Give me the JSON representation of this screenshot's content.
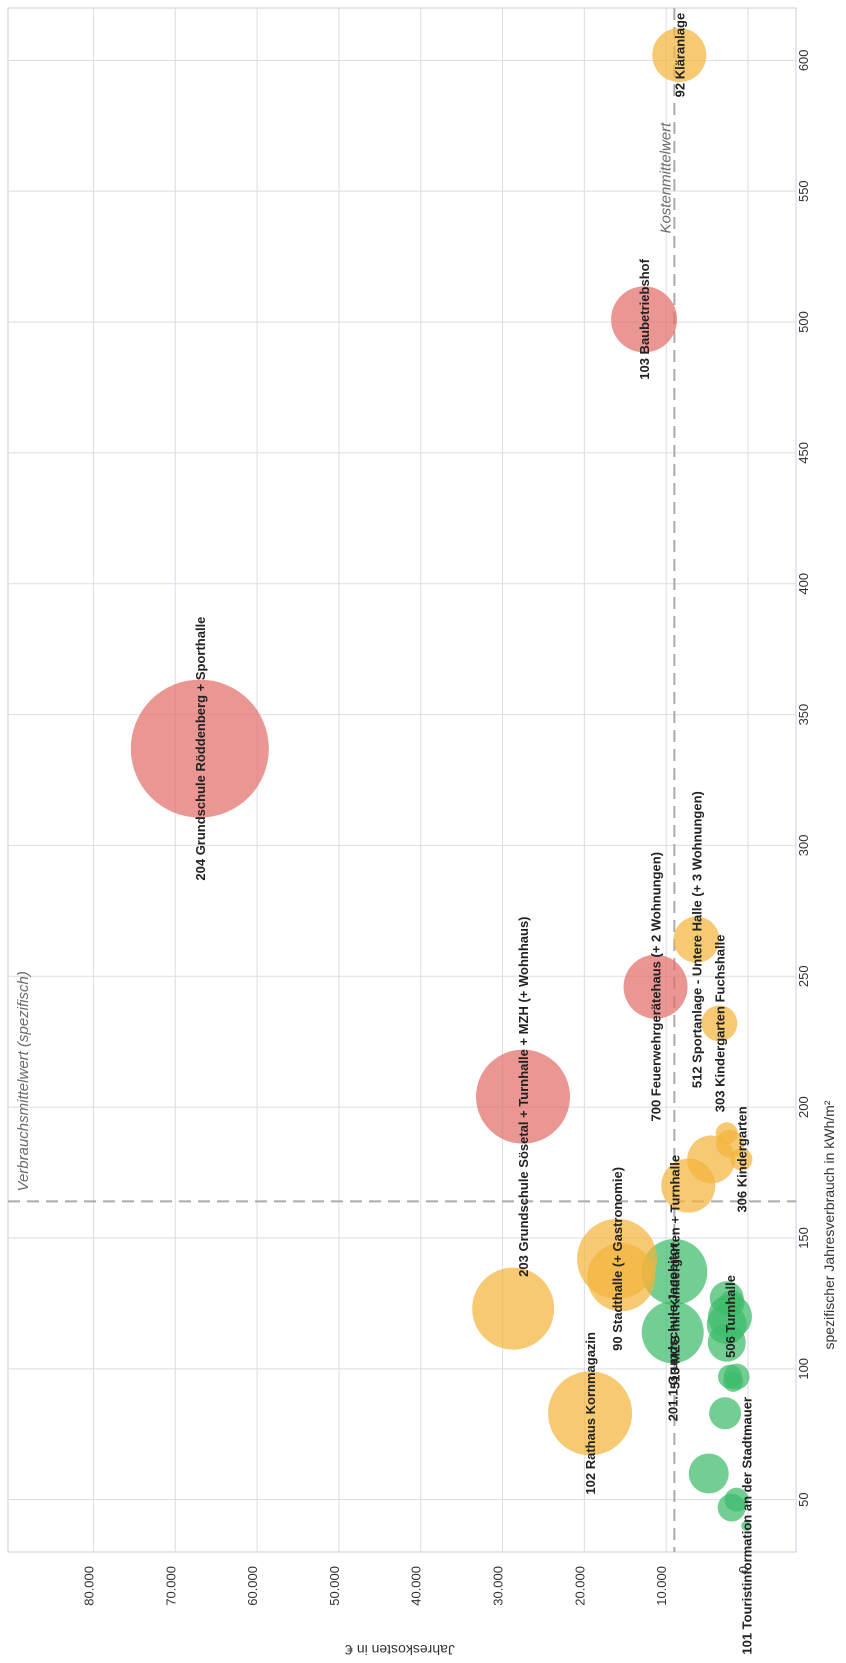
{
  "chart_data": {
    "type": "scatter",
    "xlabel": "spezifischer Jahresverbrauch in kWh/m²",
    "ylabel": "Jahreskosten in €",
    "xlim": [
      30,
      620
    ],
    "ylim": [
      0,
      88000
    ],
    "x_ticks": [
      50,
      100,
      150,
      200,
      250,
      300,
      350,
      400,
      450,
      500,
      550,
      600
    ],
    "y_ticks": [
      0,
      10000,
      20000,
      30000,
      40000,
      50000,
      60000,
      70000,
      80000
    ],
    "y_tick_labels": [
      "0",
      "10.000",
      "20.000",
      "30.000",
      "40.000",
      "50.000",
      "60.000",
      "70.000",
      "80.000"
    ],
    "grid": true,
    "colors": {
      "green": "#3dbb6b",
      "orange": "#f2b43c",
      "red": "#e26d6a",
      "reference": "#aaaaaa",
      "grid": "#dcdde6"
    },
    "reference_lines": [
      {
        "axis": "x",
        "value": 164,
        "label": "Verbrauchsmittelwert (spezifisch)"
      },
      {
        "axis": "y",
        "value": 9000,
        "label": "Kostenmittelwert"
      }
    ],
    "series": [
      {
        "color": "green",
        "points": [
          {
            "x": 40,
            "y": 200,
            "r": 5,
            "label": "101 Touristinformation an der Stadtmauer"
          },
          {
            "x": 47,
            "y": 2000,
            "r": 14
          },
          {
            "x": 50,
            "y": 1400,
            "r": 12
          },
          {
            "x": 60,
            "y": 4800,
            "r": 20
          },
          {
            "x": 83,
            "y": 2800,
            "r": 16
          },
          {
            "x": 95,
            "y": 1800,
            "r": 10
          },
          {
            "x": 97,
            "y": 1400,
            "r": 13
          },
          {
            "x": 97,
            "y": 2200,
            "r": 12
          },
          {
            "x": 110,
            "y": 2600,
            "r": 19
          },
          {
            "x": 114,
            "y": 9200,
            "r": 31,
            "label": "201.1 Grundschule Jacobitor"
          },
          {
            "x": 117,
            "y": 2600,
            "r": 20
          },
          {
            "x": 120,
            "y": 2200,
            "r": 22,
            "label": "506 Turnhalle"
          },
          {
            "x": 125,
            "y": 2000,
            "r": 13
          },
          {
            "x": 127,
            "y": 2600,
            "r": 17
          },
          {
            "x": 137,
            "y": 9000,
            "r": 33,
            "label": "513 MZG mit Kindergarten + Turnhalle"
          }
        ]
      },
      {
        "color": "orange",
        "points": [
          {
            "x": 83,
            "y": 19300,
            "r": 42,
            "label": "102 Rathaus Kornmagazin"
          },
          {
            "x": 123,
            "y": 28700,
            "r": 41
          },
          {
            "x": 135,
            "y": 15500,
            "r": 34
          },
          {
            "x": 142,
            "y": 16000,
            "r": 40,
            "label": "90 Stadthalle (+ Gastronomie)"
          },
          {
            "x": 170,
            "y": 7300,
            "r": 27
          },
          {
            "x": 180,
            "y": 4500,
            "r": 24
          },
          {
            "x": 180,
            "y": 800,
            "r": 11,
            "label": "306 Kindergarten"
          },
          {
            "x": 186,
            "y": 2200,
            "r": 14
          },
          {
            "x": 190,
            "y": 2600,
            "r": 11
          },
          {
            "x": 232,
            "y": 3500,
            "r": 18,
            "label": "303 Kindergarten Fuchshalle"
          },
          {
            "x": 264,
            "y": 6300,
            "r": 23,
            "label": "512 Sportanlage - Untere Halle (+ 3 Wohnungen)"
          },
          {
            "x": 602,
            "y": 8400,
            "r": 27,
            "label": "92 Kläranlage"
          }
        ]
      },
      {
        "color": "red",
        "points": [
          {
            "x": 204,
            "y": 27500,
            "r": 47,
            "label": "203 Grundschule Sösetal + Turnhalle + MZH (+ Wohnhaus)"
          },
          {
            "x": 246,
            "y": 11300,
            "r": 32,
            "label": "700 Feuerwehrgerätehaus (+ 2 Wohnungen)"
          },
          {
            "x": 337,
            "y": 67000,
            "r": 69,
            "label": "204 Grundschule Röddenberg + Sporthalle"
          },
          {
            "x": 501,
            "y": 12700,
            "r": 33,
            "label": "103 Baubetriebshof"
          }
        ]
      }
    ]
  }
}
